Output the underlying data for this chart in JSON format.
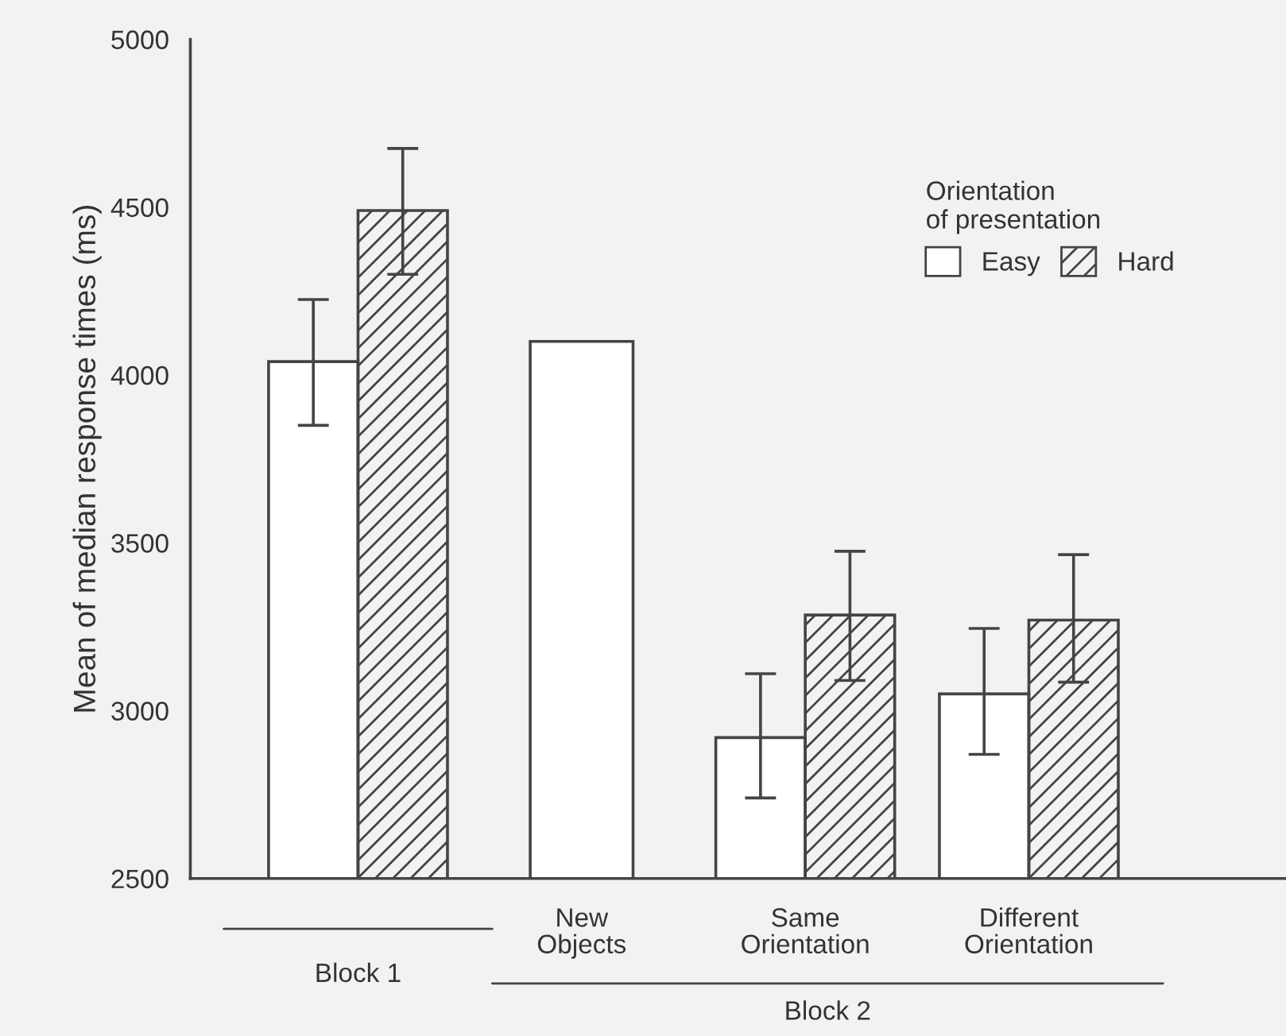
{
  "chart_data": {
    "type": "bar",
    "ylabel": "Mean of median response times (ms)",
    "categories": [
      null,
      "New\nObjects",
      "Same\nOrientation",
      "Different\nOrientation"
    ],
    "series": [
      {
        "name": "Easy",
        "color": "#ffffff",
        "values": [
          4040,
          4100,
          2920,
          3050
        ],
        "errors": [
          [
            3850,
            4225
          ],
          null,
          [
            2740,
            3110
          ],
          [
            2870,
            3245
          ]
        ]
      },
      {
        "name": "Hard",
        "color": "#444444",
        "values": [
          4490,
          null,
          3285,
          3270
        ],
        "errors": [
          [
            4300,
            4675
          ],
          null,
          [
            3090,
            3475
          ],
          [
            3085,
            3465
          ]
        ]
      }
    ],
    "ylim": [
      2500,
      5000
    ],
    "yticks": [
      2500,
      3000,
      3500,
      4000,
      4500,
      5000
    ],
    "legend": "top right",
    "legend_title": "Orientation\nof presentation",
    "grid": false,
    "annotations": [
      "Block 1",
      "Block 2"
    ]
  }
}
